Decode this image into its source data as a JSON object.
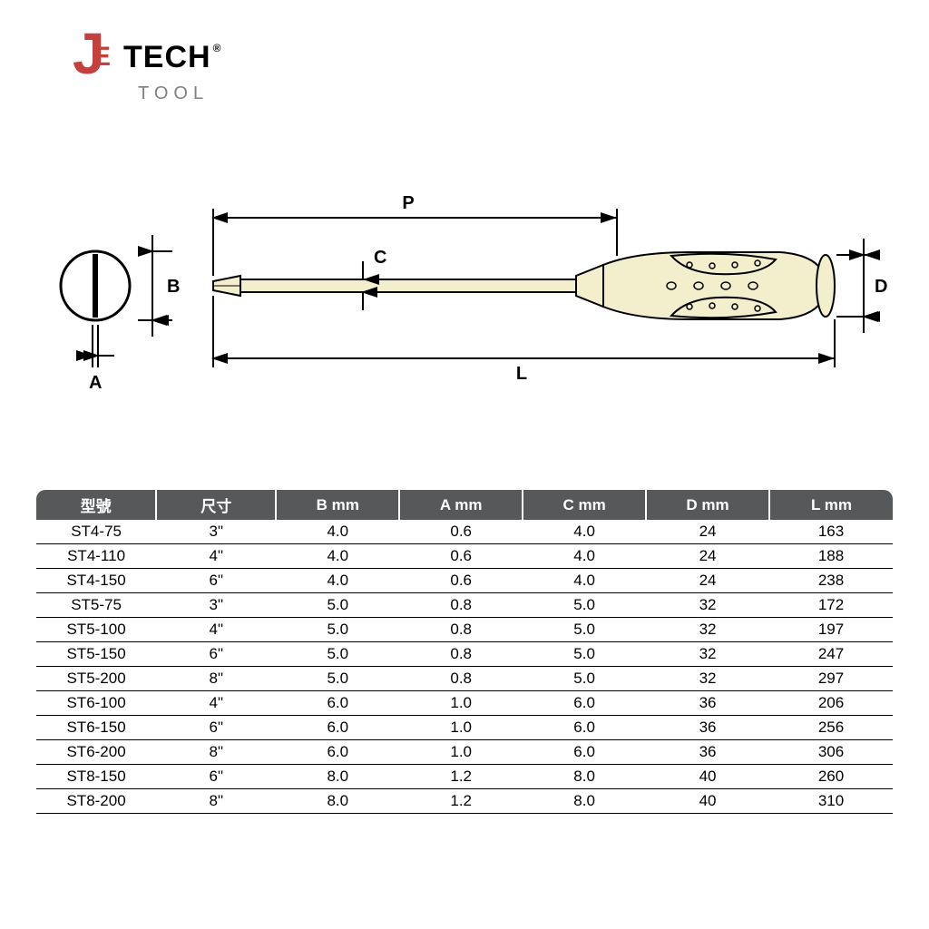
{
  "logo": {
    "brand_j": "J",
    "brand_e": "E",
    "brand_rest": "TECH",
    "reg": "®",
    "sub": "TOOL"
  },
  "diagram": {
    "labels": {
      "P": "P",
      "C": "C",
      "L": "L",
      "B": "B",
      "A": "A",
      "D": "D"
    },
    "colors": {
      "stroke": "#000000",
      "fill_body": "#f3eecb",
      "fill_shadow": "#d9d3a6"
    }
  },
  "table": {
    "header_bg": "#57585a",
    "header_fg": "#ffffff",
    "columns": [
      "型號",
      "尺寸",
      "B mm",
      "A mm",
      "C mm",
      "D mm",
      "L mm"
    ],
    "rows": [
      [
        "ST4-75",
        "3\"",
        "4.0",
        "0.6",
        "4.0",
        "24",
        "163"
      ],
      [
        "ST4-110",
        "4\"",
        "4.0",
        "0.6",
        "4.0",
        "24",
        "188"
      ],
      [
        "ST4-150",
        "6\"",
        "4.0",
        "0.6",
        "4.0",
        "24",
        "238"
      ],
      [
        "ST5-75",
        "3\"",
        "5.0",
        "0.8",
        "5.0",
        "32",
        "172"
      ],
      [
        "ST5-100",
        "4\"",
        "5.0",
        "0.8",
        "5.0",
        "32",
        "197"
      ],
      [
        "ST5-150",
        "6\"",
        "5.0",
        "0.8",
        "5.0",
        "32",
        "247"
      ],
      [
        "ST5-200",
        "8\"",
        "5.0",
        "0.8",
        "5.0",
        "32",
        "297"
      ],
      [
        "ST6-100",
        "4\"",
        "6.0",
        "1.0",
        "6.0",
        "36",
        "206"
      ],
      [
        "ST6-150",
        "6\"",
        "6.0",
        "1.0",
        "6.0",
        "36",
        "256"
      ],
      [
        "ST6-200",
        "8\"",
        "6.0",
        "1.0",
        "6.0",
        "36",
        "306"
      ],
      [
        "ST8-150",
        "6\"",
        "8.0",
        "1.2",
        "8.0",
        "40",
        "260"
      ],
      [
        "ST8-200",
        "8\"",
        "8.0",
        "1.2",
        "8.0",
        "40",
        "310"
      ]
    ]
  }
}
